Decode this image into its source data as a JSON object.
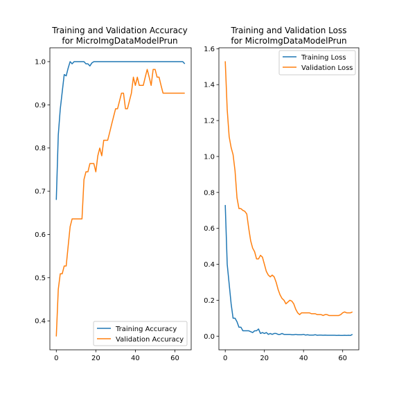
{
  "chart_data": [
    {
      "type": "line",
      "title_lines": [
        "Training and Validation Accuracy",
        "for MicroImgDataModelPrun"
      ],
      "xlabel": "",
      "ylabel": "",
      "xlim": [
        -3.25,
        68.25
      ],
      "ylim": [
        0.333,
        1.032
      ],
      "xticks": [
        0,
        20,
        40,
        60
      ],
      "xtick_labels": [
        "0",
        "20",
        "40",
        "60"
      ],
      "yticks": [
        0.4,
        0.5,
        0.6,
        0.7,
        0.8,
        0.9,
        1.0
      ],
      "ytick_labels": [
        "0.4",
        "0.5",
        "0.6",
        "0.7",
        "0.8",
        "0.9",
        "1.0"
      ],
      "legend_position": "lower-right",
      "grid": false,
      "series": [
        {
          "name": "Training Accuracy",
          "color": "#1f77b4",
          "x": [
            0,
            1,
            2,
            3,
            4,
            5,
            6,
            7,
            8,
            9,
            10,
            11,
            12,
            13,
            14,
            15,
            16,
            17,
            18,
            19,
            20,
            21,
            22,
            23,
            24,
            25,
            26,
            27,
            28,
            29,
            30,
            31,
            32,
            33,
            34,
            35,
            36,
            37,
            38,
            39,
            40,
            41,
            42,
            43,
            44,
            45,
            46,
            47,
            48,
            49,
            50,
            51,
            52,
            53,
            54,
            55,
            56,
            57,
            58,
            59,
            60,
            61,
            62,
            63,
            64,
            65
          ],
          "y": [
            0.68,
            0.83,
            0.89,
            0.93,
            0.97,
            0.967,
            0.985,
            1.0,
            0.995,
            1.0,
            1.0,
            1.0,
            1.0,
            1.0,
            1.0,
            0.995,
            0.995,
            0.99,
            0.997,
            1.0,
            1.0,
            1.0,
            1.0,
            1.0,
            1.0,
            1.0,
            1.0,
            1.0,
            1.0,
            1.0,
            1.0,
            1.0,
            1.0,
            1.0,
            1.0,
            1.0,
            1.0,
            1.0,
            1.0,
            1.0,
            1.0,
            1.0,
            1.0,
            1.0,
            1.0,
            1.0,
            1.0,
            1.0,
            1.0,
            1.0,
            1.0,
            1.0,
            1.0,
            1.0,
            1.0,
            1.0,
            1.0,
            1.0,
            1.0,
            1.0,
            1.0,
            1.0,
            1.0,
            1.0,
            1.0,
            0.995
          ]
        },
        {
          "name": "Validation Accuracy",
          "color": "#ff7f0e",
          "x": [
            0,
            1,
            2,
            3,
            4,
            5,
            6,
            7,
            8,
            9,
            10,
            11,
            12,
            13,
            14,
            15,
            16,
            17,
            18,
            19,
            20,
            21,
            22,
            23,
            24,
            25,
            26,
            27,
            28,
            29,
            30,
            31,
            32,
            33,
            34,
            35,
            36,
            37,
            38,
            39,
            40,
            41,
            42,
            43,
            44,
            45,
            46,
            47,
            48,
            49,
            50,
            51,
            52,
            53,
            54,
            55,
            56,
            57,
            58,
            59,
            60,
            61,
            62,
            63,
            64,
            65
          ],
          "y": [
            0.364,
            0.473,
            0.509,
            0.509,
            0.527,
            0.527,
            0.573,
            0.618,
            0.636,
            0.636,
            0.636,
            0.636,
            0.636,
            0.636,
            0.727,
            0.745,
            0.745,
            0.764,
            0.764,
            0.764,
            0.745,
            0.782,
            0.8,
            0.782,
            0.818,
            0.818,
            0.818,
            0.836,
            0.855,
            0.873,
            0.891,
            0.891,
            0.909,
            0.927,
            0.927,
            0.891,
            0.891,
            0.909,
            0.927,
            0.964,
            0.945,
            0.964,
            0.945,
            0.945,
            0.945,
            0.964,
            0.982,
            0.964,
            0.945,
            0.982,
            0.982,
            0.964,
            0.964,
            0.945,
            0.927,
            0.927,
            0.927,
            0.927,
            0.927,
            0.927,
            0.927,
            0.927,
            0.927,
            0.927,
            0.927,
            0.927
          ]
        }
      ]
    },
    {
      "type": "line",
      "title_lines": [
        "Training and Validation Loss",
        "for MicroImgDataModelPrun"
      ],
      "xlabel": "",
      "ylabel": "",
      "xlim": [
        -3.25,
        68.25
      ],
      "ylim": [
        -0.076,
        1.605
      ],
      "xticks": [
        0,
        20,
        40,
        60
      ],
      "xtick_labels": [
        "0",
        "20",
        "40",
        "60"
      ],
      "yticks": [
        0.0,
        0.2,
        0.4,
        0.6,
        0.8,
        1.0,
        1.2,
        1.4,
        1.6
      ],
      "ytick_labels": [
        "0.0",
        "0.2",
        "0.4",
        "0.6",
        "0.8",
        "1.0",
        "1.2",
        "1.4",
        "1.6"
      ],
      "legend_position": "upper-right",
      "grid": false,
      "series": [
        {
          "name": "Training Loss",
          "color": "#1f77b4",
          "x": [
            0,
            1,
            2,
            3,
            4,
            5,
            6,
            7,
            8,
            9,
            10,
            11,
            12,
            13,
            14,
            15,
            16,
            17,
            18,
            19,
            20,
            21,
            22,
            23,
            24,
            25,
            26,
            27,
            28,
            29,
            30,
            31,
            32,
            33,
            34,
            35,
            36,
            37,
            38,
            39,
            40,
            41,
            42,
            43,
            44,
            45,
            46,
            47,
            48,
            49,
            50,
            51,
            52,
            53,
            54,
            55,
            56,
            57,
            58,
            59,
            60,
            61,
            62,
            63,
            64,
            65
          ],
          "y": [
            0.73,
            0.4,
            0.29,
            0.18,
            0.1,
            0.1,
            0.08,
            0.05,
            0.05,
            0.03,
            0.03,
            0.03,
            0.03,
            0.025,
            0.02,
            0.03,
            0.03,
            0.04,
            0.015,
            0.02,
            0.015,
            0.02,
            0.01,
            0.015,
            0.01,
            0.015,
            0.015,
            0.01,
            0.01,
            0.015,
            0.01,
            0.01,
            0.01,
            0.01,
            0.008,
            0.008,
            0.01,
            0.008,
            0.008,
            0.008,
            0.01,
            0.006,
            0.008,
            0.006,
            0.006,
            0.006,
            0.008,
            0.005,
            0.006,
            0.006,
            0.005,
            0.006,
            0.005,
            0.005,
            0.005,
            0.005,
            0.005,
            0.004,
            0.005,
            0.004,
            0.004,
            0.005,
            0.004,
            0.005,
            0.004,
            0.01
          ]
        },
        {
          "name": "Validation Loss",
          "color": "#ff7f0e",
          "x": [
            0,
            1,
            2,
            3,
            4,
            5,
            6,
            7,
            8,
            9,
            10,
            11,
            12,
            13,
            14,
            15,
            16,
            17,
            18,
            19,
            20,
            21,
            22,
            23,
            24,
            25,
            26,
            27,
            28,
            29,
            30,
            31,
            32,
            33,
            34,
            35,
            36,
            37,
            38,
            39,
            40,
            41,
            42,
            43,
            44,
            45,
            46,
            47,
            48,
            49,
            50,
            51,
            52,
            53,
            54,
            55,
            56,
            57,
            58,
            59,
            60,
            61,
            62,
            63,
            64,
            65
          ],
          "y": [
            1.53,
            1.26,
            1.11,
            1.05,
            1.01,
            0.92,
            0.77,
            0.71,
            0.71,
            0.7,
            0.695,
            0.68,
            0.6,
            0.53,
            0.49,
            0.47,
            0.43,
            0.43,
            0.45,
            0.44,
            0.4,
            0.36,
            0.34,
            0.33,
            0.34,
            0.33,
            0.3,
            0.26,
            0.23,
            0.21,
            0.2,
            0.18,
            0.19,
            0.2,
            0.195,
            0.18,
            0.15,
            0.13,
            0.12,
            0.13,
            0.13,
            0.13,
            0.13,
            0.13,
            0.125,
            0.125,
            0.125,
            0.12,
            0.12,
            0.12,
            0.115,
            0.12,
            0.12,
            0.115,
            0.115,
            0.115,
            0.115,
            0.115,
            0.115,
            0.12,
            0.13,
            0.135,
            0.13,
            0.13,
            0.13,
            0.135
          ]
        }
      ]
    }
  ]
}
